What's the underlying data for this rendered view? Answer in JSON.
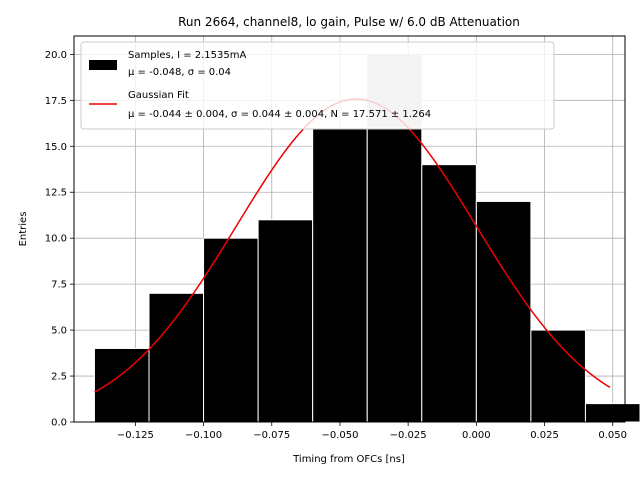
{
  "chart_data": {
    "type": "bar",
    "title": "Run 2664, channel8, lo gain, Pulse w/ 6.0 dB Attenuation",
    "xlabel": "Timing from OFCs [ns]",
    "ylabel": "Entries",
    "xlim": [
      -0.1475,
      0.0545
    ],
    "ylim": [
      0,
      21
    ],
    "grid": true,
    "legend_position": "top-left",
    "bins": [
      {
        "x0": -0.14,
        "x1": -0.12,
        "count": 4
      },
      {
        "x0": -0.12,
        "x1": -0.1,
        "count": 7
      },
      {
        "x0": -0.1,
        "x1": -0.08,
        "count": 10
      },
      {
        "x0": -0.08,
        "x1": -0.06,
        "count": 11
      },
      {
        "x0": -0.06,
        "x1": -0.04,
        "count": 16
      },
      {
        "x0": -0.04,
        "x1": -0.02,
        "count": 20
      },
      {
        "x0": -0.02,
        "x1": 0.0,
        "count": 14
      },
      {
        "x0": 0.0,
        "x1": 0.02,
        "count": 12
      },
      {
        "x0": 0.02,
        "x1": 0.04,
        "count": 5
      },
      {
        "x0": 0.04,
        "x1": 0.06,
        "count": 1
      }
    ],
    "overlay_bar": {
      "x0": -0.04,
      "x1": -0.02,
      "count": 20,
      "color": "#c8c8c8"
    },
    "bar_color": "#000000",
    "bar_edge_color": "#ffffff",
    "fit": {
      "type": "gaussian",
      "mu": -0.044,
      "sigma": 0.044,
      "N": 17.571,
      "x_range": [
        -0.14,
        0.049
      ],
      "color": "#ee0000"
    },
    "xticks": [
      -0.125,
      -0.1,
      -0.075,
      -0.05,
      -0.025,
      0.0,
      0.025,
      0.05
    ],
    "xtick_labels": [
      "−0.125",
      "−0.100",
      "−0.075",
      "−0.050",
      "−0.025",
      "0.000",
      "0.025",
      "0.050"
    ],
    "yticks": [
      0,
      2.5,
      5,
      7.5,
      10,
      12.5,
      15,
      17.5,
      20
    ],
    "ytick_labels": [
      "0.0",
      "2.5",
      "5.0",
      "7.5",
      "10.0",
      "12.5",
      "15.0",
      "17.5",
      "20.0"
    ],
    "legend": {
      "samples_line1": "Samples, I = 2.1535mA",
      "samples_line2": "μ = -0.048, σ = 0.04",
      "fit_line1": "Gaussian Fit",
      "fit_line2": "μ = -0.044 ± 0.004, σ = 0.044 ± 0.004, N = 17.571 ± 1.264"
    }
  }
}
